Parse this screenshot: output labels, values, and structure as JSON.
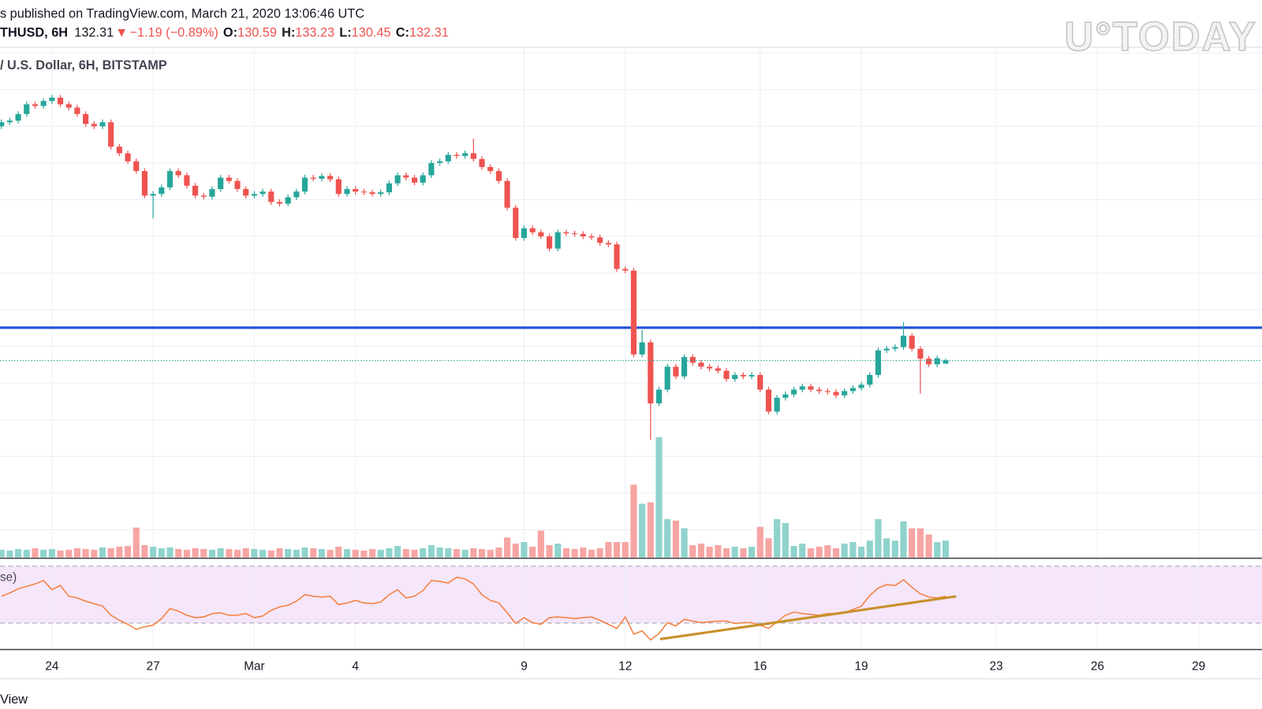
{
  "header": {
    "published": "s published on TradingView.com, March 21, 2020 13:06:46 UTC",
    "symbol": "THUSD, 6H",
    "direction": "▼",
    "change": "−1.19 (−0.89%)",
    "ohlc_labels": [
      "O:",
      "H:",
      "L:",
      "C:"
    ],
    "source": "/ U.S. Dollar, 6H, BITSTAMP",
    "watermark": "U°TODAY",
    "footer": "View"
  },
  "chart_data": {
    "type": "candlestick",
    "up_color": "#26a69a",
    "down_color": "#ef5350",
    "xlim": [
      -7.54,
      29.88
    ],
    "xticks": [
      {
        "value": -6,
        "label": "24"
      },
      {
        "value": -3,
        "label": "27"
      },
      {
        "value": 0,
        "label": "Mar"
      },
      {
        "value": 3,
        "label": "4"
      },
      {
        "value": 8,
        "label": "9"
      },
      {
        "value": 11,
        "label": "12"
      },
      {
        "value": 15,
        "label": "16"
      },
      {
        "value": 18,
        "label": "19"
      },
      {
        "value": 22,
        "label": "23"
      },
      {
        "value": 25,
        "label": "26"
      },
      {
        "value": 28,
        "label": "29"
      }
    ],
    "ylim": [
      24.9,
      303.1
    ],
    "ygrid": [
      40,
      60,
      80,
      100,
      120,
      140,
      160,
      180,
      200,
      220,
      240,
      260,
      280,
      300
    ],
    "x": [
      -7.5,
      -7.25,
      -7,
      -6.75,
      -6.5,
      -6.25,
      -6,
      -5.75,
      -5.5,
      -5.25,
      -5,
      -4.75,
      -4.5,
      -4.25,
      -4,
      -3.75,
      -3.5,
      -3.25,
      -3,
      -2.75,
      -2.5,
      -2.25,
      -2,
      -1.75,
      -1.5,
      -1.25,
      -1,
      -0.75,
      -0.5,
      -0.25,
      0,
      0.25,
      0.5,
      0.75,
      1,
      1.25,
      1.5,
      1.75,
      2,
      2.25,
      2.5,
      2.75,
      3,
      3.25,
      3.5,
      3.75,
      4,
      4.25,
      4.5,
      4.75,
      5,
      5.25,
      5.5,
      5.75,
      6,
      6.25,
      6.5,
      6.75,
      7,
      7.25,
      7.5,
      7.75,
      8,
      8.25,
      8.5,
      8.75,
      9,
      9.25,
      9.5,
      9.75,
      10,
      10.25,
      10.5,
      10.75,
      11,
      11.25,
      11.5,
      11.75,
      12,
      12.25,
      12.5,
      12.75,
      13,
      13.25,
      13.5,
      13.75,
      14,
      14.25,
      14.5,
      14.75,
      15,
      15.25,
      15.5,
      15.75,
      16,
      16.25,
      16.5,
      16.75,
      17,
      17.25,
      17.5,
      17.75,
      18,
      18.25,
      18.5,
      18.75,
      19,
      19.25,
      19.5,
      19.75,
      20,
      20.25,
      20.5
    ],
    "open": [
      260.0,
      262.2,
      263.1,
      266.7,
      272.0,
      271.1,
      273.8,
      275.6,
      272.0,
      270.2,
      266.7,
      261.3,
      260.0,
      262.2,
      248.9,
      245.3,
      240.9,
      235.6,
      222.2,
      223.1,
      226.7,
      235.6,
      233.3,
      227.6,
      222.2,
      221.6,
      225.8,
      232.0,
      230.2,
      225.8,
      222.2,
      223.1,
      224.4,
      218.7,
      217.8,
      221.3,
      224.4,
      232.0,
      231.4,
      232.9,
      231.1,
      223.1,
      225.8,
      224.4,
      224.0,
      223.1,
      224.0,
      228.9,
      233.3,
      232.0,
      229.3,
      233.3,
      240.0,
      240.9,
      244.4,
      243.8,
      245.3,
      242.2,
      237.8,
      235.6,
      230.2,
      215.6,
      199.1,
      204.4,
      202.2,
      200.0,
      193.3,
      202.2,
      201.6,
      201.3,
      200.0,
      199.4,
      196.4,
      195.6,
      182.2,
      181.3,
      135.6,
      142.2,
      108.9,
      116.4,
      128.9,
      123.6,
      134.2,
      131.1,
      128.9,
      128.0,
      126.7,
      122.2,
      124.4,
      123.6,
      124.4,
      116.4,
      104.4,
      112.0,
      113.8,
      116.4,
      118.2,
      116.4,
      115.6,
      115.1,
      113.3,
      115.6,
      117.3,
      119.1,
      124.4,
      137.8,
      138.7,
      139.6,
      145.8,
      138.7,
      133.3,
      130.2,
      130.59
    ],
    "high": [
      263.7,
      264.6,
      268.2,
      273.5,
      273.5,
      275.3,
      277.1,
      277.1,
      273.5,
      271.7,
      268.2,
      262.8,
      263.7,
      263.7,
      250.4,
      246.8,
      242.4,
      237.1,
      224.6,
      228.2,
      237.1,
      237.1,
      234.8,
      229.1,
      223.7,
      227.3,
      233.5,
      233.5,
      231.7,
      227.3,
      224.6,
      225.9,
      225.9,
      220.2,
      222.8,
      225.9,
      233.5,
      233.5,
      234.4,
      234.4,
      232.6,
      227.3,
      227.3,
      225.9,
      225.5,
      225.5,
      230.4,
      234.8,
      234.8,
      233.5,
      234.8,
      241.5,
      242.4,
      245.9,
      245.9,
      246.8,
      253.3,
      243.7,
      239.3,
      237.1,
      231.7,
      217.1,
      205.9,
      205.9,
      203.7,
      201.5,
      203.7,
      203.7,
      203.1,
      202.8,
      201.5,
      200.9,
      197.9,
      197.1,
      183.7,
      182.8,
      148.9,
      143.7,
      117.9,
      130.4,
      130.4,
      135.7,
      135.7,
      132.6,
      130.4,
      129.5,
      128.2,
      125.9,
      125.9,
      125.9,
      125.9,
      117.9,
      113.5,
      115.3,
      117.9,
      119.7,
      119.7,
      117.9,
      117.1,
      116.6,
      117.1,
      118.8,
      120.6,
      125.9,
      139.3,
      140.2,
      141.1,
      153.3,
      147.3,
      140.2,
      134.8,
      135.0,
      133.23
    ],
    "low": [
      258.5,
      260.7,
      261.6,
      265.2,
      269.6,
      269.6,
      272.3,
      270.5,
      268.7,
      265.2,
      259.8,
      258.5,
      258.5,
      247.4,
      243.8,
      239.4,
      234.1,
      220.7,
      209.8,
      221.6,
      225.2,
      231.8,
      226.1,
      220.7,
      220.1,
      220.1,
      224.3,
      228.7,
      224.3,
      220.7,
      220.7,
      221.6,
      217.2,
      216.3,
      216.3,
      219.8,
      222.9,
      229.9,
      229.9,
      229.6,
      221.6,
      221.6,
      222.9,
      222.5,
      221.6,
      221.6,
      222.5,
      227.4,
      230.5,
      227.8,
      227.8,
      231.8,
      238.5,
      239.4,
      242.3,
      242.3,
      240.7,
      236.3,
      234.1,
      228.7,
      214.1,
      197.6,
      197.6,
      200.7,
      198.5,
      191.8,
      191.8,
      200.1,
      199.8,
      198.5,
      197.9,
      194.9,
      194.1,
      180.7,
      179.8,
      134.1,
      134.1,
      89.0,
      107.4,
      114.9,
      122.1,
      122.1,
      129.6,
      127.4,
      126.5,
      125.2,
      120.7,
      120.7,
      122.1,
      122.1,
      114.9,
      102.9,
      102.9,
      110.5,
      112.3,
      114.9,
      114.9,
      114.1,
      113.6,
      111.8,
      111.8,
      114.1,
      115.8,
      117.6,
      122.9,
      136.3,
      137.2,
      138.1,
      137.2,
      114.2,
      128.7,
      128.7,
      130.45
    ],
    "close": [
      262.2,
      263.1,
      266.7,
      272.0,
      271.1,
      273.8,
      275.6,
      272.0,
      270.2,
      266.7,
      261.3,
      260.0,
      262.2,
      248.9,
      245.3,
      240.9,
      235.6,
      222.2,
      223.1,
      226.7,
      235.6,
      233.3,
      227.6,
      222.2,
      221.6,
      225.8,
      232.0,
      230.2,
      225.8,
      222.2,
      223.1,
      224.4,
      218.7,
      217.8,
      221.3,
      224.4,
      232.0,
      231.4,
      232.9,
      231.1,
      223.1,
      225.8,
      224.4,
      224.0,
      223.1,
      224.0,
      228.9,
      233.3,
      232.0,
      229.3,
      233.3,
      240.0,
      240.9,
      244.4,
      243.8,
      245.3,
      242.2,
      237.8,
      235.6,
      230.2,
      215.6,
      199.1,
      204.4,
      202.2,
      200.0,
      193.3,
      202.2,
      201.6,
      201.3,
      200.0,
      199.4,
      196.4,
      195.6,
      182.2,
      181.3,
      135.6,
      142.2,
      108.9,
      116.4,
      128.9,
      123.6,
      134.2,
      131.1,
      128.9,
      128.0,
      126.7,
      122.2,
      124.4,
      123.6,
      124.4,
      116.4,
      104.4,
      112.0,
      113.8,
      116.4,
      118.2,
      116.4,
      115.6,
      115.1,
      113.3,
      115.6,
      117.3,
      119.1,
      124.4,
      137.8,
      138.7,
      139.6,
      145.8,
      138.7,
      133.3,
      130.2,
      133.5,
      132.31
    ],
    "levels": [
      {
        "value": 150.2,
        "color": "#1d4fd8"
      }
    ],
    "volume": {
      "ylim": [
        0,
        100
      ],
      "up_color": "#8fd3cc",
      "down_color": "#f6a5a3",
      "values": [
        10,
        9,
        11,
        10,
        12,
        10,
        11,
        9,
        10,
        12,
        11,
        10,
        13,
        12,
        14,
        15,
        39,
        16,
        14,
        12,
        13,
        11,
        10,
        12,
        11,
        10,
        12,
        11,
        10,
        12,
        11,
        10,
        9,
        12,
        11,
        10,
        13,
        12,
        11,
        10,
        14,
        11,
        10,
        9,
        11,
        10,
        12,
        15,
        11,
        10,
        12,
        16,
        13,
        12,
        11,
        10,
        12,
        11,
        10,
        13,
        26,
        18,
        20,
        14,
        35,
        16,
        18,
        12,
        11,
        13,
        10,
        12,
        20,
        20,
        20,
        95,
        70,
        72,
        157,
        50,
        48,
        38,
        16,
        18,
        14,
        16,
        12,
        14,
        12,
        14,
        40,
        25,
        50,
        45,
        15,
        18,
        12,
        14,
        16,
        12,
        18,
        20,
        14,
        22,
        50,
        25,
        22,
        47,
        38,
        38,
        30,
        20,
        22
      ]
    },
    "rsi": {
      "label": "se)",
      "ylim": [
        12,
        75
      ],
      "bands": [
        30,
        70
      ],
      "color": "#f5803e",
      "background": "#f5e6fb",
      "values": [
        48.8,
        51.2,
        54.1,
        55.8,
        57.5,
        59.9,
        53.5,
        56.4,
        48.8,
        47.7,
        45.4,
        43.6,
        41.9,
        35.5,
        32.0,
        29.1,
        25.6,
        27.4,
        28.5,
        33.2,
        40.1,
        38.4,
        35.5,
        33.8,
        34.3,
        36.7,
        37.2,
        35.5,
        35.5,
        36.7,
        33.8,
        34.9,
        39.0,
        41.3,
        42.5,
        45.4,
        50.0,
        48.8,
        48.3,
        48.8,
        43.0,
        44.2,
        45.9,
        44.2,
        43.6,
        44.8,
        50.0,
        53.5,
        47.7,
        48.8,
        52.9,
        59.9,
        59.3,
        58.1,
        62.2,
        61.0,
        57.5,
        50.0,
        45.9,
        44.2,
        37.2,
        29.7,
        33.8,
        30.3,
        29.1,
        33.8,
        34.3,
        33.8,
        33.2,
        33.8,
        34.3,
        32.0,
        29.1,
        26.2,
        34.3,
        22.2,
        24.5,
        18.1,
        22.7,
        30.3,
        28.0,
        32.6,
        31.4,
        30.3,
        30.9,
        31.4,
        31.4,
        29.7,
        30.3,
        30.3,
        28.5,
        26.2,
        30.9,
        35.5,
        37.8,
        36.7,
        36.1,
        35.5,
        36.7,
        36.7,
        37.2,
        39.6,
        41.9,
        49.4,
        54.6,
        57.0,
        56.4,
        60.4,
        55.2,
        50.6,
        48.3,
        47.7,
        48.8
      ],
      "trendline": {
        "x": [
          12.03,
          20.81
        ],
        "values": [
          18.7,
          48.8
        ],
        "color": "#c8902a"
      }
    }
  }
}
